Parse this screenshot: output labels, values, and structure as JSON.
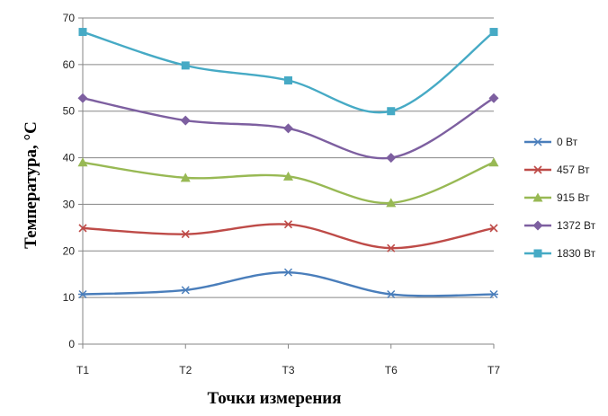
{
  "chart_data": {
    "type": "line",
    "xlabel": "Точки измерения",
    "ylabel": "Температура, °С",
    "categories": [
      "T1",
      "T2",
      "T3",
      "T6",
      "T7"
    ],
    "ylim": [
      0,
      70
    ],
    "yticks": [
      0,
      10,
      20,
      30,
      40,
      50,
      60,
      70
    ],
    "grid": true,
    "legend_position": "right",
    "series": [
      {
        "name": "0 Вт",
        "color": "#4a7ebb",
        "marker": "star",
        "values": [
          10.7,
          11.6,
          15.4,
          10.7,
          10.7
        ]
      },
      {
        "name": "457 Вт",
        "color": "#be4b48",
        "marker": "x",
        "values": [
          24.9,
          23.6,
          25.7,
          20.6,
          24.9
        ]
      },
      {
        "name": "915 Вт",
        "color": "#98b954",
        "marker": "triangle",
        "values": [
          39.0,
          35.7,
          36.0,
          30.3,
          39.0
        ]
      },
      {
        "name": "1372 Вт",
        "color": "#7d5fa0",
        "marker": "diamond",
        "values": [
          52.8,
          48.0,
          46.3,
          40.0,
          52.8
        ]
      },
      {
        "name": "1830 Вт",
        "color": "#46aac5",
        "marker": "square",
        "values": [
          67.0,
          59.8,
          56.6,
          50.0,
          67.0
        ]
      }
    ]
  }
}
